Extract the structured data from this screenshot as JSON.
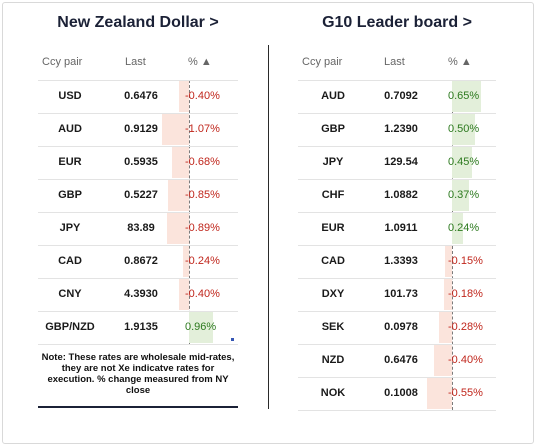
{
  "nzd": {
    "title": "New Zealand Dollar >",
    "headers": {
      "pair": "Ccy pair",
      "last": "Last",
      "pct": "% ▲"
    },
    "rows": [
      {
        "pair": "USD",
        "last": "0.6476",
        "pct": "-0.40%",
        "value": -0.4
      },
      {
        "pair": "AUD",
        "last": "0.9129",
        "pct": "-1.07%",
        "value": -1.07
      },
      {
        "pair": "EUR",
        "last": "0.5935",
        "pct": "-0.68%",
        "value": -0.68
      },
      {
        "pair": "GBP",
        "last": "0.5227",
        "pct": "-0.85%",
        "value": -0.85
      },
      {
        "pair": "JPY",
        "last": "83.89",
        "pct": "-0.89%",
        "value": -0.89
      },
      {
        "pair": "CAD",
        "last": "0.8672",
        "pct": "-0.24%",
        "value": -0.24
      },
      {
        "pair": "CNY",
        "last": "4.3930",
        "pct": "-0.40%",
        "value": -0.4
      },
      {
        "pair": "GBP/NZD",
        "last": "1.9135",
        "pct": "0.96%",
        "value": 0.96
      }
    ],
    "note": "Note: These rates are wholesale mid-rates, they are not Xe indicatve rates for execution. % change measured from NY close"
  },
  "g10": {
    "title": "G10 Leader board >",
    "headers": {
      "pair": "Ccy pair",
      "last": "Last",
      "pct": "% ▲"
    },
    "rows": [
      {
        "pair": "AUD",
        "last": "0.7092",
        "pct": "0.65%",
        "value": 0.65
      },
      {
        "pair": "GBP",
        "last": "1.2390",
        "pct": "0.50%",
        "value": 0.5
      },
      {
        "pair": "JPY",
        "last": "129.54",
        "pct": "0.45%",
        "value": 0.45
      },
      {
        "pair": "CHF",
        "last": "1.0882",
        "pct": "0.37%",
        "value": 0.37
      },
      {
        "pair": "EUR",
        "last": "1.0911",
        "pct": "0.24%",
        "value": 0.24
      },
      {
        "pair": "CAD",
        "last": "1.3393",
        "pct": "-0.15%",
        "value": -0.15
      },
      {
        "pair": "DXY",
        "last": "101.73",
        "pct": "-0.18%",
        "value": -0.18
      },
      {
        "pair": "SEK",
        "last": "0.0978",
        "pct": "-0.28%",
        "value": -0.28
      },
      {
        "pair": "NZD",
        "last": "0.6476",
        "pct": "-0.40%",
        "value": -0.4
      },
      {
        "pair": "NOK",
        "last": "0.1008",
        "pct": "-0.55%",
        "value": -0.55
      }
    ]
  },
  "colors": {
    "negative": "#c0261c",
    "positive": "#2d7a1f",
    "negative_fill": "#fbe4dc",
    "positive_fill": "#e3efda"
  }
}
